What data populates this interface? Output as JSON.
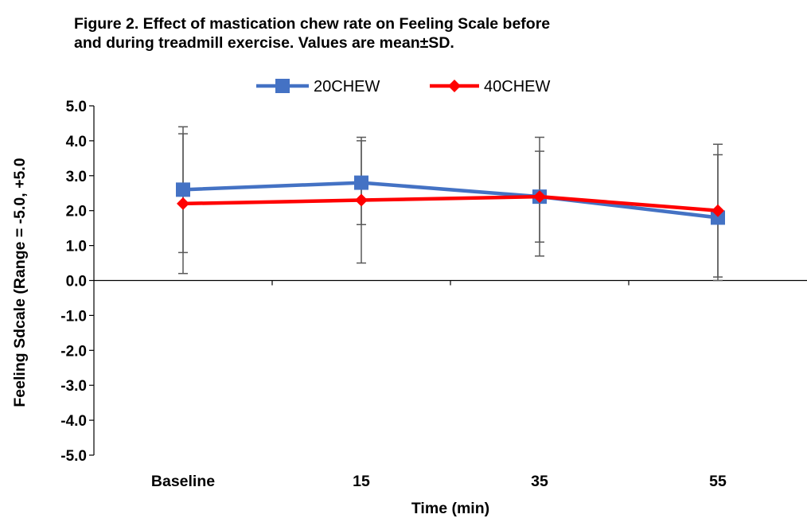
{
  "figure": {
    "title_line1": "Figure 2.  Effect of mastication chew rate on Feeling Scale before",
    "title_line2": "and during treadmill exercise.  Values are mean±SD."
  },
  "chart_data": {
    "type": "line",
    "title": "Figure 2.  Effect of mastication chew rate on Feeling Scale before and during treadmill exercise.  Values are mean±SD.",
    "xlabel": "Time (min)",
    "ylabel": "Feeling Sdcale (Range = -5.0,  +5.0",
    "categories": [
      "Baseline",
      "15",
      "35",
      "55"
    ],
    "ylim": [
      -5.0,
      5.0
    ],
    "yticks": [
      "5.0",
      "4.0",
      "3.0",
      "2.0",
      "1.0",
      "0.0",
      "-1.0",
      "-2.0",
      "-3.0",
      "-4.0",
      "-5.0"
    ],
    "grid": false,
    "legend_position": "top-center",
    "series": [
      {
        "name": "20CHEW",
        "color": "#4472C4",
        "marker": "square",
        "values": [
          2.6,
          2.8,
          2.4,
          1.8
        ],
        "sd": [
          1.8,
          1.2,
          1.3,
          1.8
        ]
      },
      {
        "name": "40CHEW",
        "color": "#FF0000",
        "marker": "diamond",
        "values": [
          2.2,
          2.3,
          2.4,
          2.0
        ],
        "sd": [
          2.0,
          1.8,
          1.7,
          1.9
        ]
      }
    ]
  }
}
